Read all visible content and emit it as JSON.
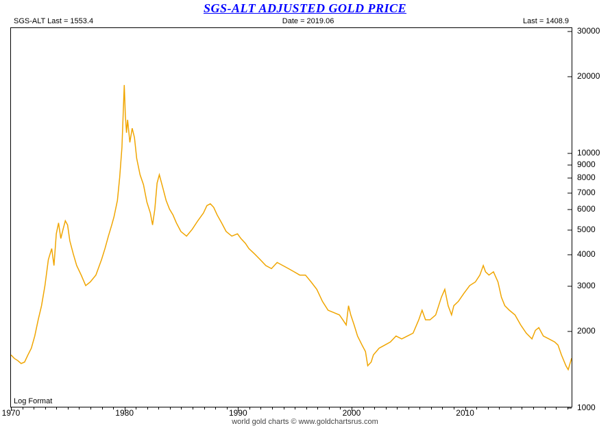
{
  "chart": {
    "type": "line",
    "title": "SGS-ALT ADJUSTED  GOLD PRICE",
    "info": {
      "left": "SGS-ALT Last = 1553.4",
      "center": "Date = 2019.06",
      "right": "Last = 1408.9"
    },
    "log_label": "Log Format",
    "credits": "world gold charts © www.goldchartsrus.com",
    "line_color": "#f0a500",
    "line_width": 1.5,
    "background_color": "#ffffff",
    "border_color": "#000000",
    "x": {
      "min": 1970,
      "max": 2019.5,
      "major_ticks": [
        1970,
        1980,
        1990,
        2000,
        2010
      ],
      "minor_step": 1
    },
    "y": {
      "scale": "log",
      "min": 1000,
      "max": 31000,
      "ticks": [
        1000,
        2000,
        3000,
        4000,
        5000,
        6000,
        7000,
        8000,
        9000,
        10000,
        20000,
        30000
      ]
    },
    "series": [
      [
        1970.0,
        1600
      ],
      [
        1970.3,
        1550
      ],
      [
        1970.6,
        1520
      ],
      [
        1970.9,
        1480
      ],
      [
        1971.2,
        1500
      ],
      [
        1971.5,
        1600
      ],
      [
        1971.8,
        1700
      ],
      [
        1972.1,
        1900
      ],
      [
        1972.4,
        2200
      ],
      [
        1972.7,
        2500
      ],
      [
        1973.0,
        3000
      ],
      [
        1973.3,
        3800
      ],
      [
        1973.6,
        4200
      ],
      [
        1973.8,
        3600
      ],
      [
        1974.0,
        4800
      ],
      [
        1974.2,
        5300
      ],
      [
        1974.4,
        4600
      ],
      [
        1974.6,
        5000
      ],
      [
        1974.8,
        5400
      ],
      [
        1975.0,
        5200
      ],
      [
        1975.2,
        4500
      ],
      [
        1975.5,
        4000
      ],
      [
        1975.8,
        3600
      ],
      [
        1976.2,
        3300
      ],
      [
        1976.6,
        3000
      ],
      [
        1977.0,
        3100
      ],
      [
        1977.5,
        3300
      ],
      [
        1978.0,
        3800
      ],
      [
        1978.3,
        4200
      ],
      [
        1978.6,
        4700
      ],
      [
        1978.9,
        5200
      ],
      [
        1979.1,
        5600
      ],
      [
        1979.4,
        6500
      ],
      [
        1979.6,
        8000
      ],
      [
        1979.8,
        10500
      ],
      [
        1980.0,
        18500
      ],
      [
        1980.1,
        14000
      ],
      [
        1980.2,
        12000
      ],
      [
        1980.3,
        13500
      ],
      [
        1980.5,
        11000
      ],
      [
        1980.7,
        12500
      ],
      [
        1980.9,
        11500
      ],
      [
        1981.1,
        9500
      ],
      [
        1981.4,
        8200
      ],
      [
        1981.7,
        7500
      ],
      [
        1982.0,
        6400
      ],
      [
        1982.3,
        5800
      ],
      [
        1982.5,
        5200
      ],
      [
        1982.7,
        6000
      ],
      [
        1982.9,
        7600
      ],
      [
        1983.1,
        8200
      ],
      [
        1983.4,
        7300
      ],
      [
        1983.7,
        6500
      ],
      [
        1984.0,
        6000
      ],
      [
        1984.3,
        5700
      ],
      [
        1984.6,
        5300
      ],
      [
        1985.0,
        4900
      ],
      [
        1985.5,
        4700
      ],
      [
        1986.0,
        5000
      ],
      [
        1986.5,
        5400
      ],
      [
        1987.0,
        5800
      ],
      [
        1987.3,
        6200
      ],
      [
        1987.6,
        6300
      ],
      [
        1987.9,
        6100
      ],
      [
        1988.2,
        5700
      ],
      [
        1988.6,
        5300
      ],
      [
        1989.0,
        4900
      ],
      [
        1989.5,
        4700
      ],
      [
        1990.0,
        4800
      ],
      [
        1990.3,
        4600
      ],
      [
        1990.7,
        4400
      ],
      [
        1991.0,
        4200
      ],
      [
        1991.5,
        4000
      ],
      [
        1992.0,
        3800
      ],
      [
        1992.5,
        3600
      ],
      [
        1993.0,
        3500
      ],
      [
        1993.5,
        3700
      ],
      [
        1994.0,
        3600
      ],
      [
        1994.5,
        3500
      ],
      [
        1995.0,
        3400
      ],
      [
        1995.5,
        3300
      ],
      [
        1996.0,
        3300
      ],
      [
        1996.5,
        3100
      ],
      [
        1997.0,
        2900
      ],
      [
        1997.5,
        2600
      ],
      [
        1998.0,
        2400
      ],
      [
        1998.5,
        2350
      ],
      [
        1999.0,
        2300
      ],
      [
        1999.3,
        2200
      ],
      [
        1999.6,
        2100
      ],
      [
        1999.8,
        2500
      ],
      [
        2000.0,
        2300
      ],
      [
        2000.3,
        2100
      ],
      [
        2000.6,
        1900
      ],
      [
        2001.0,
        1750
      ],
      [
        2001.3,
        1650
      ],
      [
        2001.5,
        1450
      ],
      [
        2001.8,
        1500
      ],
      [
        2002.0,
        1600
      ],
      [
        2002.5,
        1700
      ],
      [
        2003.0,
        1750
      ],
      [
        2003.5,
        1800
      ],
      [
        2004.0,
        1900
      ],
      [
        2004.5,
        1850
      ],
      [
        2005.0,
        1900
      ],
      [
        2005.5,
        1950
      ],
      [
        2006.0,
        2200
      ],
      [
        2006.3,
        2400
      ],
      [
        2006.6,
        2200
      ],
      [
        2007.0,
        2200
      ],
      [
        2007.5,
        2300
      ],
      [
        2008.0,
        2700
      ],
      [
        2008.3,
        2900
      ],
      [
        2008.6,
        2500
      ],
      [
        2008.9,
        2300
      ],
      [
        2009.1,
        2500
      ],
      [
        2009.5,
        2600
      ],
      [
        2010.0,
        2800
      ],
      [
        2010.5,
        3000
      ],
      [
        2011.0,
        3100
      ],
      [
        2011.4,
        3300
      ],
      [
        2011.7,
        3600
      ],
      [
        2011.9,
        3400
      ],
      [
        2012.2,
        3300
      ],
      [
        2012.6,
        3400
      ],
      [
        2013.0,
        3100
      ],
      [
        2013.3,
        2700
      ],
      [
        2013.6,
        2500
      ],
      [
        2014.0,
        2400
      ],
      [
        2014.5,
        2300
      ],
      [
        2015.0,
        2100
      ],
      [
        2015.5,
        1950
      ],
      [
        2016.0,
        1850
      ],
      [
        2016.3,
        2000
      ],
      [
        2016.6,
        2050
      ],
      [
        2017.0,
        1900
      ],
      [
        2017.5,
        1850
      ],
      [
        2018.0,
        1800
      ],
      [
        2018.3,
        1750
      ],
      [
        2018.6,
        1600
      ],
      [
        2019.0,
        1450
      ],
      [
        2019.2,
        1400
      ],
      [
        2019.4,
        1500
      ],
      [
        2019.5,
        1553
      ]
    ]
  }
}
